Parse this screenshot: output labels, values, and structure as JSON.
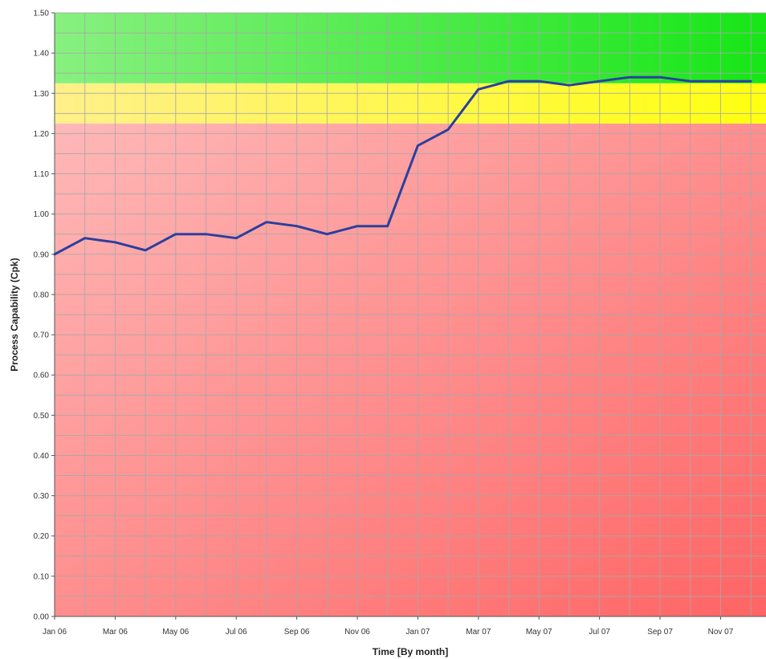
{
  "chart_data": {
    "type": "line",
    "title": "",
    "xlabel": "Time [By month]",
    "ylabel": "Process Capability (Cpk)",
    "ylim": [
      0,
      1.5
    ],
    "y_ticks": [
      "0.00",
      "0.10",
      "0.20",
      "0.30",
      "0.40",
      "0.50",
      "0.60",
      "0.70",
      "0.80",
      "0.90",
      "1.00",
      "1.10",
      "1.20",
      "1.30",
      "1.40",
      "1.50"
    ],
    "x": [
      "Jan 06",
      "Feb 06",
      "Mar 06",
      "Apr 06",
      "May 06",
      "Jun 06",
      "Jul 06",
      "Aug 06",
      "Sep 06",
      "Oct 06",
      "Nov 06",
      "Dec 06",
      "Jan 07",
      "Feb 07",
      "Mar 07",
      "Apr 07",
      "May 07",
      "Jun 07",
      "Jul 07",
      "Aug 07",
      "Sep 07",
      "Oct 07",
      "Nov 07",
      "Dec 07"
    ],
    "x_tick_labels": [
      "Jan 06",
      "Mar 06",
      "May 06",
      "Jul 06",
      "Sep 06",
      "Nov 06",
      "Jan 07",
      "Mar 07",
      "May 07",
      "Jul 07",
      "Sep 07",
      "Nov 07"
    ],
    "series": [
      {
        "values": [
          0.9,
          0.94,
          0.93,
          0.91,
          0.95,
          0.95,
          0.94,
          0.98,
          0.97,
          0.95,
          0.97,
          0.97,
          1.17,
          1.21,
          1.31,
          1.33,
          1.33,
          1.32,
          1.33,
          1.34,
          1.34,
          1.33,
          1.33,
          1.33
        ],
        "color": "#2b3f9e"
      }
    ],
    "bands": [
      {
        "from": 0.0,
        "to": 1.225,
        "colors": [
          "#ffb8b8",
          "#ff6464"
        ]
      },
      {
        "from": 1.225,
        "to": 1.325,
        "colors": [
          "#fff08a",
          "#ffff10"
        ]
      },
      {
        "from": 1.325,
        "to": 1.5,
        "colors": [
          "#88f080",
          "#16e616"
        ]
      }
    ],
    "grid": true
  }
}
